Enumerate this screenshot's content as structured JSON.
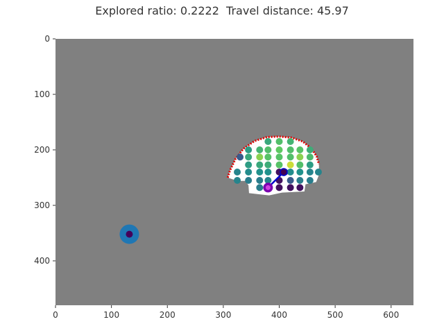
{
  "title": "Explored ratio: 0.2222  Travel distance: 45.97",
  "colors": {
    "background": "#808080",
    "free_space": "#ffffff",
    "frontier": "#e00000",
    "path": "#0000cc",
    "agent_outer": "#7a00b0",
    "agent_inner": "#d040e0",
    "goal_outer": "#1f77b4",
    "goal_inner": "#44005a",
    "viridis": [
      "#440154",
      "#3b528b",
      "#21918c",
      "#5ec962",
      "#fde725"
    ]
  },
  "axes": {
    "xlim": [
      0,
      640
    ],
    "ylim": [
      480,
      0
    ],
    "xticks": [
      0,
      100,
      200,
      300,
      400,
      500,
      600
    ],
    "yticks": [
      0,
      100,
      200,
      300,
      400
    ]
  },
  "map": {
    "explored_region": [
      [
        308,
        250
      ],
      [
        312,
        237
      ],
      [
        322,
        216
      ],
      [
        336,
        198
      ],
      [
        356,
        184
      ],
      [
        378,
        177
      ],
      [
        400,
        176
      ],
      [
        422,
        178
      ],
      [
        442,
        185
      ],
      [
        458,
        198
      ],
      [
        467,
        212
      ],
      [
        471,
        226
      ],
      [
        471,
        245
      ],
      [
        466,
        258
      ],
      [
        447,
        262
      ],
      [
        445,
        275
      ],
      [
        405,
        277
      ],
      [
        382,
        282
      ],
      [
        346,
        278
      ],
      [
        345,
        264
      ],
      [
        340,
        256
      ],
      [
        325,
        256
      ]
    ],
    "frontier_arc": [
      [
        308,
        250
      ],
      [
        312,
        237
      ],
      [
        322,
        216
      ],
      [
        336,
        198
      ],
      [
        356,
        184
      ],
      [
        378,
        177
      ],
      [
        400,
        176
      ],
      [
        422,
        178
      ],
      [
        442,
        185
      ],
      [
        458,
        198
      ],
      [
        467,
        212
      ],
      [
        471,
        226
      ]
    ],
    "candidates": [
      {
        "x": 380,
        "y": 185,
        "v": 0.6
      },
      {
        "x": 400,
        "y": 185,
        "v": 0.7
      },
      {
        "x": 420,
        "y": 185,
        "v": 0.65
      },
      {
        "x": 345,
        "y": 200,
        "v": 0.55
      },
      {
        "x": 365,
        "y": 200,
        "v": 0.65
      },
      {
        "x": 380,
        "y": 200,
        "v": 0.7
      },
      {
        "x": 400,
        "y": 200,
        "v": 0.75
      },
      {
        "x": 420,
        "y": 200,
        "v": 0.7
      },
      {
        "x": 437,
        "y": 200,
        "v": 0.72
      },
      {
        "x": 455,
        "y": 200,
        "v": 0.62
      },
      {
        "x": 330,
        "y": 213,
        "v": 0.28
      },
      {
        "x": 345,
        "y": 213,
        "v": 0.6
      },
      {
        "x": 365,
        "y": 213,
        "v": 0.82
      },
      {
        "x": 380,
        "y": 213,
        "v": 0.72
      },
      {
        "x": 400,
        "y": 213,
        "v": 0.72
      },
      {
        "x": 420,
        "y": 213,
        "v": 0.7
      },
      {
        "x": 437,
        "y": 213,
        "v": 0.82
      },
      {
        "x": 455,
        "y": 213,
        "v": 0.68
      },
      {
        "x": 345,
        "y": 227,
        "v": 0.55
      },
      {
        "x": 365,
        "y": 227,
        "v": 0.6
      },
      {
        "x": 380,
        "y": 227,
        "v": 0.62
      },
      {
        "x": 400,
        "y": 227,
        "v": 0.72
      },
      {
        "x": 420,
        "y": 227,
        "v": 0.92
      },
      {
        "x": 437,
        "y": 227,
        "v": 0.7
      },
      {
        "x": 455,
        "y": 227,
        "v": 0.55
      },
      {
        "x": 325,
        "y": 240,
        "v": 0.45
      },
      {
        "x": 345,
        "y": 240,
        "v": 0.48
      },
      {
        "x": 365,
        "y": 240,
        "v": 0.5
      },
      {
        "x": 380,
        "y": 240,
        "v": 0.5
      },
      {
        "x": 400,
        "y": 240,
        "v": 0.05
      },
      {
        "x": 410,
        "y": 240,
        "v": 0.05
      },
      {
        "x": 420,
        "y": 240,
        "v": 0.48
      },
      {
        "x": 437,
        "y": 240,
        "v": 0.5
      },
      {
        "x": 455,
        "y": 240,
        "v": 0.45
      },
      {
        "x": 470,
        "y": 240,
        "v": 0.45
      },
      {
        "x": 325,
        "y": 255,
        "v": 0.45
      },
      {
        "x": 345,
        "y": 255,
        "v": 0.42
      },
      {
        "x": 365,
        "y": 255,
        "v": 0.42
      },
      {
        "x": 380,
        "y": 255,
        "v": 0.45
      },
      {
        "x": 400,
        "y": 255,
        "v": 0.05
      },
      {
        "x": 420,
        "y": 255,
        "v": 0.28
      },
      {
        "x": 437,
        "y": 255,
        "v": 0.42
      },
      {
        "x": 455,
        "y": 255,
        "v": 0.42
      },
      {
        "x": 365,
        "y": 268,
        "v": 0.42
      },
      {
        "x": 400,
        "y": 268,
        "v": 0.05
      },
      {
        "x": 420,
        "y": 268,
        "v": 0.05
      },
      {
        "x": 437,
        "y": 268,
        "v": 0.05
      }
    ],
    "path": [
      [
        380,
        268
      ],
      [
        408,
        240
      ]
    ],
    "agent": {
      "x": 380,
      "y": 268
    },
    "path_end": {
      "x": 408,
      "y": 240
    },
    "goal": {
      "x": 132,
      "y": 352
    }
  }
}
